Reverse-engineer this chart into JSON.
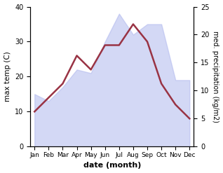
{
  "months": [
    "Jan",
    "Feb",
    "Mar",
    "Apr",
    "May",
    "Jun",
    "Jul",
    "Aug",
    "Sep",
    "Oct",
    "Nov",
    "Dec"
  ],
  "max_temp": [
    10,
    14,
    18,
    26,
    22,
    29,
    29,
    35,
    30,
    18,
    12,
    8
  ],
  "precipitation": [
    15,
    13,
    17,
    22,
    21,
    30,
    38,
    32,
    35,
    35,
    19,
    19
  ],
  "precip_color": "#993344",
  "fill_color": "#b0b8ee",
  "fill_alpha": 0.55,
  "xlabel": "date (month)",
  "ylabel_left": "max temp (C)",
  "ylabel_right": "med. precipitation (kg/m2)",
  "ylim_left": [
    0,
    40
  ],
  "ylim_right": [
    0,
    25
  ],
  "yticks_left": [
    0,
    10,
    20,
    30,
    40
  ],
  "yticks_right": [
    0,
    5,
    10,
    15,
    20,
    25
  ],
  "background_color": "#ffffff",
  "line_width": 1.8
}
